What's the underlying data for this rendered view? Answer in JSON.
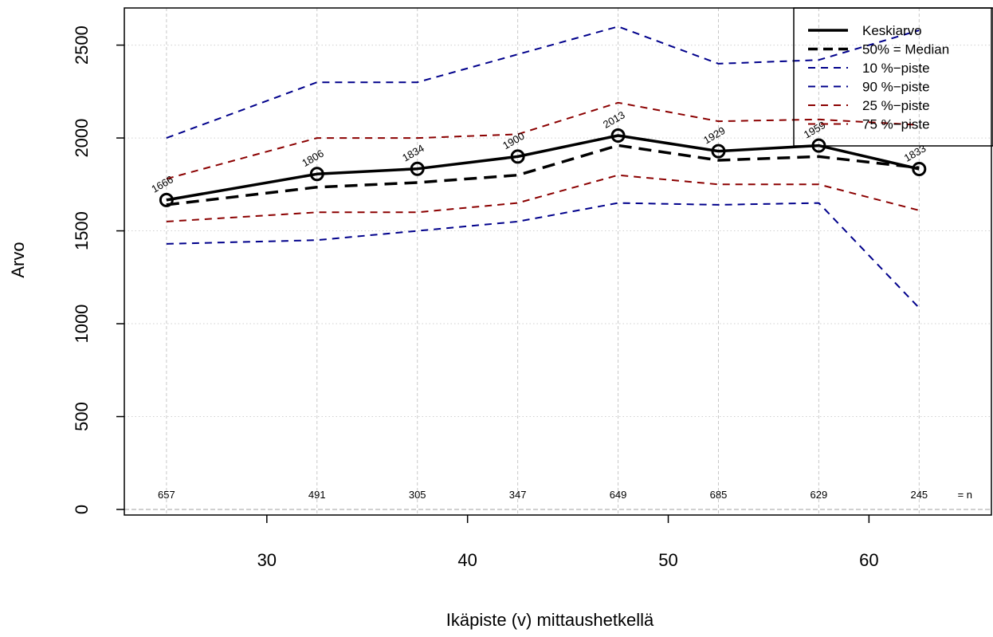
{
  "chart_data": {
    "type": "line",
    "xlabel": "Ikäpiste (v) mittaushetkellä",
    "ylabel": "Arvo",
    "xlim": [
      22.9,
      66.1
    ],
    "ylim": [
      -30,
      2700
    ],
    "x_ticks": [
      "30",
      "40",
      "50",
      "60"
    ],
    "y_ticks": [
      "0",
      "500",
      "1000",
      "1500",
      "2000",
      "2500"
    ],
    "grid": true,
    "legend_position": "top-right",
    "x": [
      25,
      32.5,
      37.5,
      42.5,
      47.5,
      52.5,
      57.5,
      62.5
    ],
    "n_values": [
      "657",
      "491",
      "305",
      "347",
      "649",
      "685",
      "629",
      "245"
    ],
    "n_label": "= n",
    "mean_labels": [
      "1666",
      "1806",
      "1834",
      "1900",
      "2013",
      "1929",
      "1959",
      "1833"
    ],
    "series": [
      {
        "name": "Keskiarvo",
        "values": [
          1666,
          1806,
          1834,
          1900,
          2013,
          1929,
          1959,
          1833
        ],
        "color": "#000000",
        "style": "solid",
        "width": 3.5,
        "markers": true
      },
      {
        "name": "50% = Median",
        "values": [
          1640,
          1735,
          1760,
          1800,
          1960,
          1880,
          1900,
          1840
        ],
        "color": "#000000",
        "style": "dashed",
        "width": 3.5
      },
      {
        "name": "10 %−piste",
        "values": [
          1430,
          1450,
          1500,
          1550,
          1650,
          1640,
          1650,
          1085
        ],
        "color": "#00008b",
        "style": "dashed",
        "width": 2
      },
      {
        "name": "90 %−piste",
        "values": [
          2000,
          2300,
          2300,
          2450,
          2600,
          2400,
          2420,
          2580
        ],
        "color": "#00008b",
        "style": "dashed",
        "width": 2
      },
      {
        "name": "25 %−piste",
        "values": [
          1550,
          1600,
          1600,
          1650,
          1800,
          1750,
          1750,
          1610
        ],
        "color": "#8b0000",
        "style": "dashed",
        "width": 2
      },
      {
        "name": "75 %−piste",
        "values": [
          1780,
          2000,
          2000,
          2020,
          2190,
          2090,
          2100,
          2070
        ],
        "color": "#8b0000",
        "style": "dashed",
        "width": 2
      }
    ]
  }
}
